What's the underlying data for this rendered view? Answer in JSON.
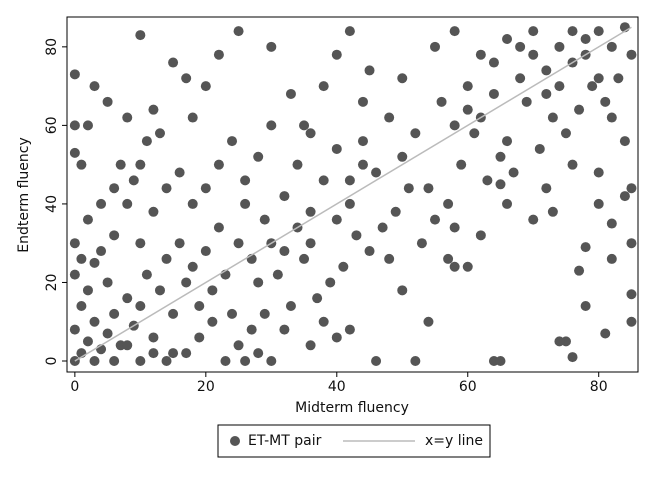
{
  "chart_data": {
    "type": "scatter",
    "x_label": "Midterm fluency",
    "y_label": "Endterm fluency",
    "xlim": [
      -1.2,
      86
    ],
    "ylim": [
      -2.8,
      87.6
    ],
    "xticks": [
      0,
      20,
      40,
      60,
      80
    ],
    "yticks": [
      0,
      20,
      40,
      60,
      80
    ],
    "grid": false,
    "legend": "bottom",
    "series": [
      {
        "name": "ET-MT pair",
        "color": "#555555",
        "mode": "markers",
        "x": [
          0,
          1,
          2,
          0,
          3,
          1,
          4,
          5,
          2,
          0,
          6,
          7,
          8,
          3,
          5,
          9,
          10,
          11,
          12,
          13,
          14,
          15,
          15,
          16,
          17,
          18,
          19,
          20,
          21,
          22,
          23,
          24,
          25,
          26,
          27,
          28,
          29,
          30,
          10,
          12,
          8,
          6,
          4,
          14,
          16,
          18,
          20,
          22,
          24,
          26,
          28,
          30,
          32,
          34,
          36,
          38,
          40,
          42,
          44,
          46,
          48,
          50,
          52,
          54,
          56,
          58,
          60,
          62,
          64,
          66,
          68,
          70,
          72,
          74,
          76,
          78,
          80,
          82,
          84,
          85,
          83,
          81,
          79,
          77,
          75,
          73,
          71,
          69,
          67,
          65,
          63,
          61,
          59,
          57,
          55,
          53,
          51,
          49,
          47,
          45,
          43,
          41,
          39,
          37,
          35,
          33,
          31,
          29,
          27,
          25,
          23,
          21,
          19,
          17,
          35,
          38,
          40,
          42,
          45,
          30,
          25,
          20,
          18,
          12,
          15,
          17,
          22,
          33,
          36,
          44,
          50,
          55,
          58,
          62,
          66,
          60,
          64,
          68,
          70,
          72,
          74,
          76,
          78,
          80,
          82,
          84,
          85,
          84,
          80,
          76,
          72,
          70,
          66,
          62,
          58,
          73,
          80,
          85,
          82,
          65,
          0,
          5,
          3,
          10,
          8,
          2,
          0,
          0,
          1,
          7,
          10,
          46,
          52,
          64,
          65,
          76,
          75,
          74,
          81,
          85,
          85,
          82,
          78,
          77,
          78,
          54,
          50,
          48,
          58,
          57,
          60,
          4,
          6,
          9,
          2,
          0,
          1,
          11,
          13,
          32,
          34,
          36,
          40,
          42,
          44,
          38,
          40,
          42,
          36,
          30,
          26,
          28,
          32,
          10,
          12,
          14,
          6,
          3,
          8
        ],
        "values": [
          0,
          2,
          5,
          8,
          10,
          14,
          3,
          7,
          18,
          22,
          12,
          4,
          16,
          25,
          20,
          9,
          14,
          22,
          6,
          18,
          26,
          2,
          12,
          30,
          20,
          24,
          14,
          28,
          18,
          34,
          22,
          12,
          30,
          40,
          26,
          20,
          36,
          30,
          30,
          38,
          40,
          32,
          28,
          44,
          48,
          40,
          44,
          50,
          56,
          46,
          52,
          60,
          42,
          50,
          38,
          46,
          54,
          40,
          56,
          48,
          62,
          52,
          58,
          44,
          66,
          60,
          70,
          62,
          68,
          56,
          72,
          78,
          74,
          80,
          76,
          82,
          84,
          80,
          85,
          78,
          72,
          66,
          70,
          64,
          58,
          62,
          54,
          66,
          48,
          52,
          46,
          58,
          50,
          40,
          36,
          30,
          44,
          38,
          34,
          28,
          32,
          24,
          20,
          16,
          26,
          14,
          22,
          12,
          8,
          4,
          0,
          10,
          6,
          2,
          60,
          70,
          78,
          84,
          74,
          80,
          84,
          70,
          62,
          64,
          76,
          72,
          78,
          68,
          58,
          66,
          72,
          80,
          84,
          78,
          82,
          64,
          76,
          80,
          84,
          68,
          70,
          84,
          78,
          72,
          62,
          56,
          44,
          42,
          48,
          50,
          44,
          36,
          40,
          32,
          34,
          38,
          40,
          30,
          35,
          45,
          73,
          66,
          70,
          83,
          62,
          60,
          60,
          53,
          50,
          50,
          50,
          0,
          0,
          0,
          0,
          1,
          5,
          5,
          7,
          10,
          17,
          26,
          14,
          23,
          29,
          10,
          18,
          26,
          24,
          26,
          24,
          40,
          44,
          46,
          36,
          30,
          26,
          56,
          58,
          28,
          34,
          30,
          36,
          46,
          50,
          10,
          6,
          8,
          4,
          0,
          0,
          2,
          8,
          0,
          2,
          0,
          0,
          0,
          4
        ]
      },
      {
        "name": "x=y line",
        "color": "#bbbbbb",
        "mode": "line",
        "x": [
          0,
          85
        ],
        "values": [
          0,
          85
        ]
      }
    ]
  }
}
